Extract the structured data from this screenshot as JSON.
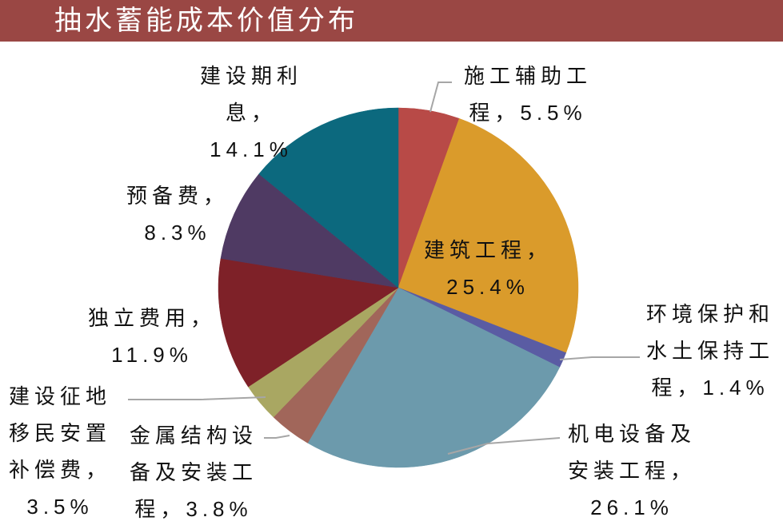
{
  "chart_data": {
    "type": "pie",
    "title": "抽水蓄能成本价值分布",
    "categories": [
      "施工辅助工程",
      "建筑工程",
      "环境保护和水土保持工程",
      "机电设备及安装工程",
      "金属结构设备及安装工程",
      "建设征地移民安置补偿费",
      "独立费用",
      "预备费",
      "建设期利息"
    ],
    "values": [
      5.5,
      25.4,
      1.4,
      26.1,
      3.8,
      3.5,
      11.9,
      8.3,
      14.1
    ],
    "value_labels": [
      "5.5%",
      "25.4%",
      "1.4%",
      "26.1%",
      "3.8%",
      "3.5%",
      "11.9%",
      "8.3%",
      "14.1%"
    ],
    "label_separator": "，",
    "colors": [
      "#b84a47",
      "#da9b2b",
      "#5a5ca3",
      "#6c9aac",
      "#a1665a",
      "#a9a762",
      "#7e2128",
      "#4f3a63",
      "#0c697e"
    ]
  }
}
